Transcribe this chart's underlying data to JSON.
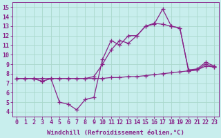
{
  "background_color": "#c8eeed",
  "grid_color": "#aad8cc",
  "line_color": "#882288",
  "marker": "+",
  "markersize": 4,
  "linewidth": 0.9,
  "xlabel": "Windchill (Refroidissement éolien,°C)",
  "xlabel_fontsize": 6.5,
  "tick_fontsize": 6.0,
  "xlim": [
    -0.5,
    23.5
  ],
  "ylim": [
    3.5,
    15.5
  ],
  "yticks": [
    4,
    5,
    6,
    7,
    8,
    9,
    10,
    11,
    12,
    13,
    14,
    15
  ],
  "xticks": [
    0,
    1,
    2,
    3,
    4,
    5,
    6,
    7,
    8,
    9,
    10,
    11,
    12,
    13,
    14,
    15,
    16,
    17,
    18,
    19,
    20,
    21,
    22,
    23
  ],
  "series": [
    {
      "x": [
        0,
        1,
        2,
        3,
        4,
        5,
        6,
        7,
        8,
        9,
        10,
        11,
        12,
        13,
        14,
        15,
        16,
        17,
        18,
        19,
        20,
        21,
        22,
        23
      ],
      "y": [
        7.5,
        7.5,
        7.5,
        7.5,
        7.5,
        7.5,
        7.5,
        7.5,
        7.5,
        7.5,
        7.5,
        7.6,
        7.6,
        7.7,
        7.7,
        7.8,
        7.9,
        8.0,
        8.1,
        8.2,
        8.3,
        8.4,
        8.8,
        8.7
      ]
    },
    {
      "x": [
        0,
        1,
        2,
        3,
        4,
        5,
        6,
        7,
        8,
        9,
        10,
        11,
        12,
        13,
        14,
        15,
        16,
        17,
        18,
        19,
        20,
        21,
        22,
        23
      ],
      "y": [
        7.5,
        7.5,
        7.5,
        7.2,
        7.5,
        5.0,
        4.8,
        4.2,
        5.3,
        5.5,
        9.5,
        11.5,
        11.0,
        12.0,
        12.0,
        13.0,
        13.2,
        14.8,
        13.0,
        12.8,
        8.4,
        8.5,
        9.2,
        8.8
      ]
    },
    {
      "x": [
        0,
        1,
        2,
        3,
        4,
        5,
        6,
        7,
        8,
        9,
        10,
        11,
        12,
        13,
        14,
        15,
        16,
        17,
        18,
        19,
        20,
        21,
        22,
        23
      ],
      "y": [
        7.5,
        7.5,
        7.5,
        7.2,
        7.5,
        7.5,
        7.5,
        7.5,
        7.5,
        7.7,
        9.0,
        10.5,
        11.5,
        11.2,
        12.0,
        13.0,
        13.3,
        13.2,
        13.0,
        12.8,
        8.3,
        8.4,
        9.0,
        8.7
      ]
    }
  ]
}
